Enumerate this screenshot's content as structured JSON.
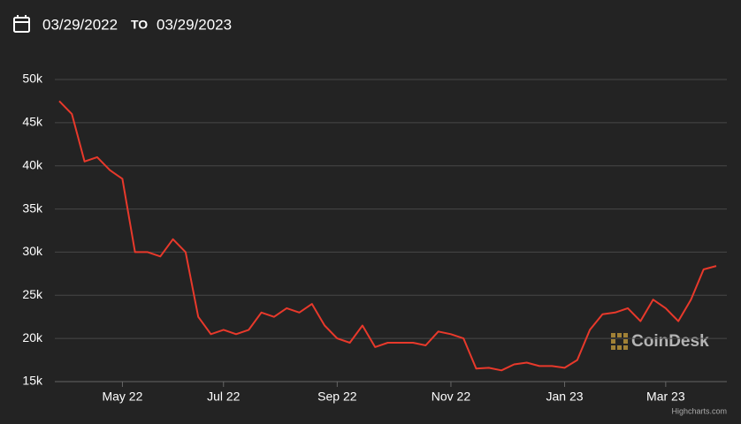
{
  "header": {
    "from": "03/29/2022",
    "to_label": "TO",
    "to": "03/29/2023"
  },
  "watermark": "CoinDesk",
  "credits": "Highcharts.com",
  "chart_data": {
    "type": "line",
    "categories": [
      null,
      null,
      null,
      null,
      null,
      "May 22",
      null,
      null,
      null,
      null,
      null,
      null,
      null,
      "Jul 22",
      null,
      null,
      null,
      null,
      null,
      null,
      null,
      null,
      "Sep 22",
      null,
      null,
      null,
      null,
      null,
      null,
      null,
      null,
      "Nov 22",
      null,
      null,
      null,
      null,
      null,
      null,
      null,
      null,
      "Jan 23",
      null,
      null,
      null,
      null,
      null,
      null,
      null,
      "Mar 23",
      null,
      null,
      null,
      null
    ],
    "values": [
      47500,
      46000,
      40500,
      41000,
      39500,
      38500,
      30000,
      30000,
      29500,
      31500,
      30000,
      22500,
      20500,
      21000,
      20500,
      21000,
      23000,
      22500,
      23500,
      23000,
      24000,
      21500,
      20000,
      19500,
      21500,
      19000,
      19500,
      19500,
      19500,
      19200,
      20800,
      20500,
      20000,
      16500,
      16600,
      16300,
      17000,
      17200,
      16800,
      16800,
      16600,
      17500,
      21000,
      22800,
      23000,
      23500,
      22000,
      24500,
      23500,
      22000,
      24500,
      28000,
      28400
    ],
    "color": "#e8392b",
    "ylim": [
      15000,
      50000
    ],
    "yticks": [
      {
        "value": 15000,
        "label": "15k"
      },
      {
        "value": 20000,
        "label": "20k"
      },
      {
        "value": 25000,
        "label": "25k"
      },
      {
        "value": 30000,
        "label": "30k"
      },
      {
        "value": 35000,
        "label": "35k"
      },
      {
        "value": 40000,
        "label": "40k"
      },
      {
        "value": 45000,
        "label": "45k"
      },
      {
        "value": 50000,
        "label": "50k"
      }
    ],
    "grid": true
  }
}
